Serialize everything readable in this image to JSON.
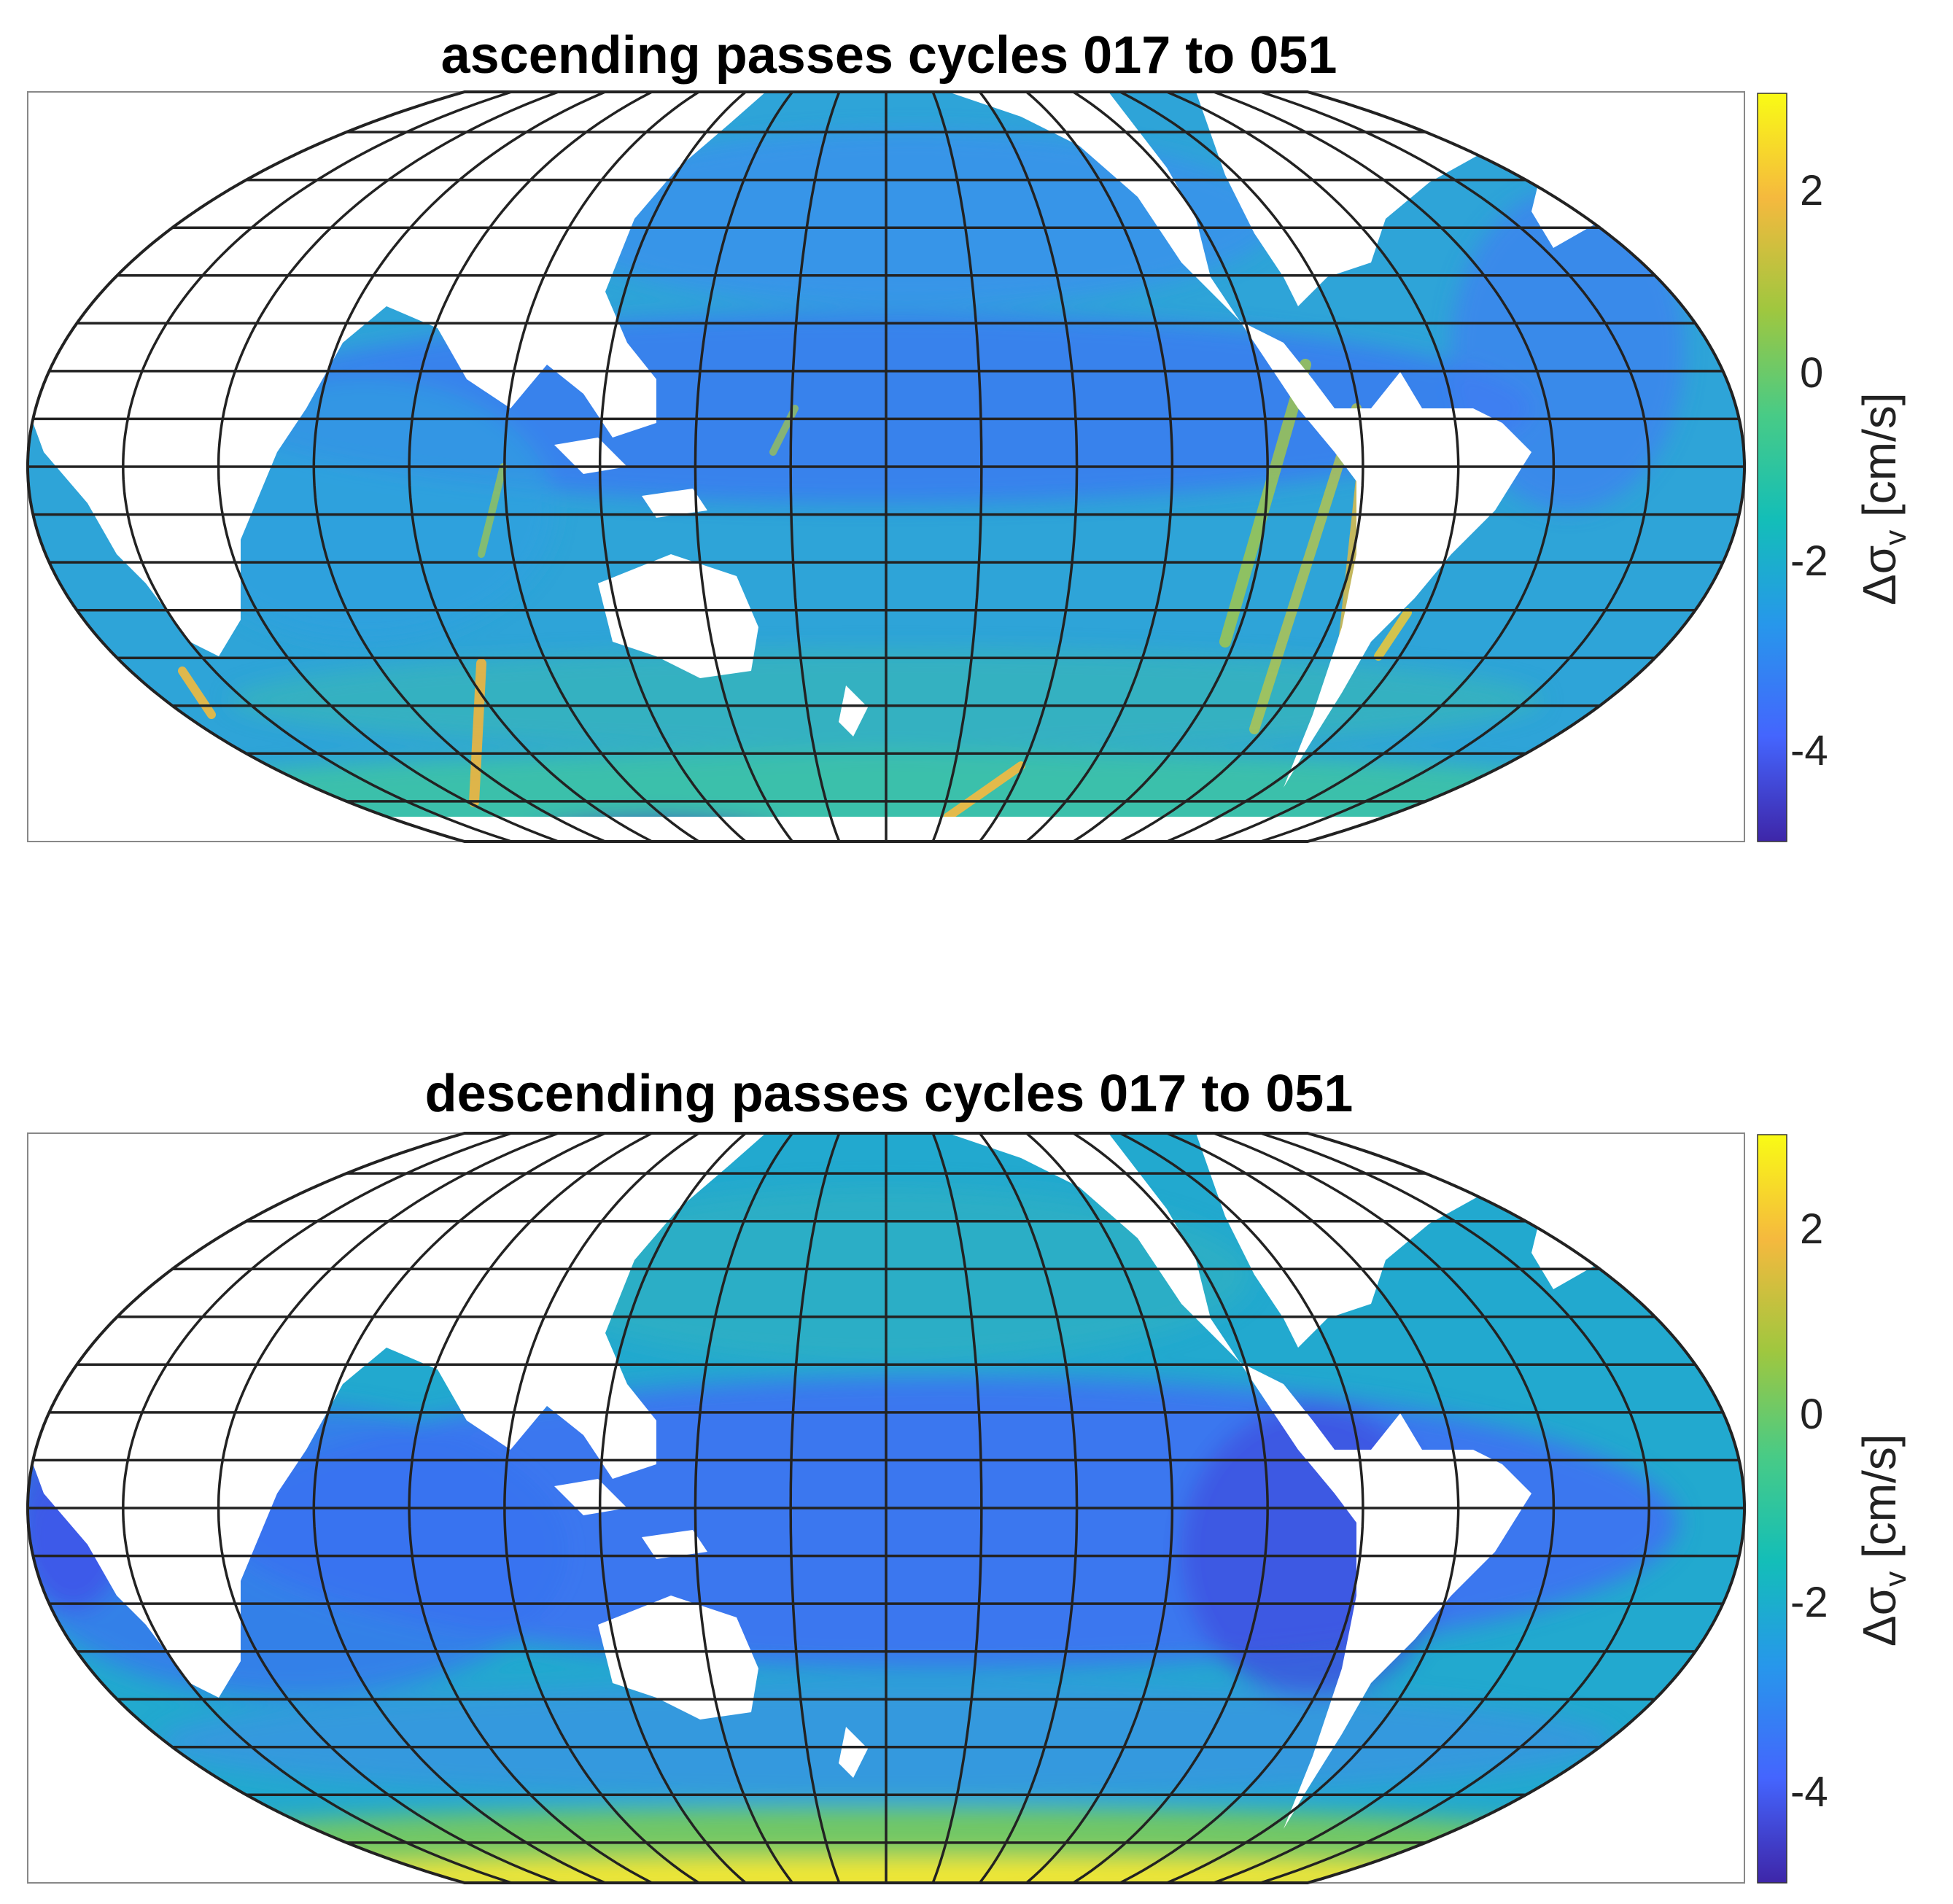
{
  "panels": [
    {
      "title": "ascending passes cycles 017 to 051",
      "mode": "ascending",
      "colorbar": {
        "label_symbol": "Δσ",
        "label_subscript": "v",
        "label_unit": "[cm/s]",
        "range": [
          -5,
          3
        ],
        "ticks": [
          "2",
          "0",
          "-2",
          "-4"
        ]
      }
    },
    {
      "title": "descending passes cycles 017 to 051",
      "mode": "descending",
      "colorbar": {
        "label_symbol": "Δσ",
        "label_subscript": "v",
        "label_unit": "[cm/s]",
        "range": [
          -5,
          3
        ],
        "ticks": [
          "2",
          "0",
          "-2",
          "-4"
        ]
      }
    }
  ],
  "colormap": "parula",
  "colormap_stops": [
    "#3e26a8",
    "#4465fe",
    "#2797eb",
    "#13beb8",
    "#48cb86",
    "#9fc73f",
    "#f5b93e",
    "#f9fb15"
  ],
  "projection": "pseudocylindrical (Pacific-centred)",
  "graticule": {
    "meridian_spacing_deg": 20,
    "parallel_spacing_deg": 10
  }
}
